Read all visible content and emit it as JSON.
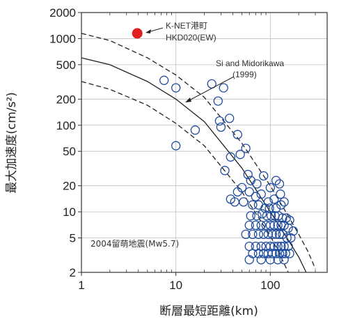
{
  "chart_data": {
    "type": "scatter",
    "title": "",
    "xlabel": "断層最短距離(km)",
    "ylabel": "最大加速度(cm/s²)",
    "x_scale": "log",
    "y_scale": "log",
    "xlim": [
      1,
      400
    ],
    "ylim": [
      2,
      2000
    ],
    "x_ticks": [
      {
        "value": 1,
        "label": "1"
      },
      {
        "value": 10,
        "label": "10"
      },
      {
        "value": 100,
        "label": "100"
      }
    ],
    "y_ticks": [
      {
        "value": 2000,
        "label": "2000"
      },
      {
        "value": 1000,
        "label": "1000"
      },
      {
        "value": 500,
        "label": "500"
      },
      {
        "value": 200,
        "label": "200"
      },
      {
        "value": 100,
        "label": "100"
      },
      {
        "value": 50,
        "label": "50"
      },
      {
        "value": 20,
        "label": "20"
      },
      {
        "value": 10,
        "label": "10"
      },
      {
        "value": 5,
        "label": "5"
      },
      {
        "value": 2,
        "label": "2"
      }
    ],
    "grid": true,
    "colors": {
      "stations": "#1e4b9e",
      "highlight": "#e02020",
      "curves": "#222222",
      "grid": "#bfbfbf"
    },
    "highlight_point": {
      "x": 3.9,
      "y": 1150
    },
    "curves": [
      {
        "style": "solid",
        "points": [
          [
            1,
            600
          ],
          [
            2,
            500
          ],
          [
            5,
            320
          ],
          [
            10,
            200
          ],
          [
            20,
            110
          ],
          [
            50,
            32
          ],
          [
            100,
            10
          ],
          [
            150,
            5
          ],
          [
            200,
            3
          ],
          [
            240,
            2
          ]
        ]
      },
      {
        "style": "dashed",
        "points": [
          [
            1,
            1150
          ],
          [
            2,
            950
          ],
          [
            5,
            600
          ],
          [
            10,
            380
          ],
          [
            20,
            210
          ],
          [
            50,
            62
          ],
          [
            100,
            20
          ],
          [
            150,
            9.5
          ],
          [
            200,
            5.5
          ],
          [
            250,
            3.5
          ],
          [
            300,
            2.2
          ]
        ]
      },
      {
        "style": "dashed",
        "points": [
          [
            1,
            320
          ],
          [
            2,
            260
          ],
          [
            5,
            170
          ],
          [
            10,
            105
          ],
          [
            20,
            58
          ],
          [
            50,
            17
          ],
          [
            100,
            5.3
          ],
          [
            130,
            3
          ],
          [
            155,
            2
          ]
        ]
      }
    ],
    "series": [
      {
        "marker": "open-circle",
        "points": [
          [
            7.5,
            330
          ],
          [
            10,
            270
          ],
          [
            32,
            270
          ],
          [
            28,
            190
          ],
          [
            24,
            300
          ],
          [
            37,
            120
          ],
          [
            29,
            112
          ],
          [
            30,
            95
          ],
          [
            16,
            88
          ],
          [
            10,
            58
          ],
          [
            45,
            78
          ],
          [
            48,
            46
          ],
          [
            55,
            54
          ],
          [
            38,
            43
          ],
          [
            33,
            30
          ],
          [
            58,
            27
          ],
          [
            62,
            23
          ],
          [
            50,
            19
          ],
          [
            45,
            17
          ],
          [
            60,
            17
          ],
          [
            72,
            21
          ],
          [
            85,
            26
          ],
          [
            100,
            19
          ],
          [
            115,
            23
          ],
          [
            125,
            21
          ],
          [
            70,
            15
          ],
          [
            80,
            16
          ],
          [
            95,
            13
          ],
          [
            110,
            14
          ],
          [
            128,
            16
          ],
          [
            38,
            14
          ],
          [
            42,
            13
          ],
          [
            52,
            13
          ],
          [
            65,
            12
          ],
          [
            75,
            12
          ],
          [
            88,
            11
          ],
          [
            98,
            11
          ],
          [
            115,
            11
          ],
          [
            130,
            12
          ],
          [
            140,
            13
          ],
          [
            62,
            9
          ],
          [
            72,
            9
          ],
          [
            82,
            9.5
          ],
          [
            92,
            9
          ],
          [
            102,
            9
          ],
          [
            112,
            9
          ],
          [
            122,
            9
          ],
          [
            135,
            8.5
          ],
          [
            148,
            8.5
          ],
          [
            160,
            8
          ],
          [
            60,
            7
          ],
          [
            70,
            7
          ],
          [
            80,
            7
          ],
          [
            90,
            7
          ],
          [
            100,
            7
          ],
          [
            110,
            7
          ],
          [
            120,
            7
          ],
          [
            130,
            7
          ],
          [
            140,
            7
          ],
          [
            155,
            6.5
          ],
          [
            175,
            6
          ],
          [
            55,
            5.5
          ],
          [
            65,
            5.5
          ],
          [
            75,
            5.5
          ],
          [
            85,
            5.5
          ],
          [
            95,
            5.5
          ],
          [
            105,
            5.5
          ],
          [
            115,
            5.5
          ],
          [
            125,
            5.5
          ],
          [
            135,
            5.5
          ],
          [
            150,
            5
          ],
          [
            165,
            5
          ],
          [
            60,
            4
          ],
          [
            70,
            4
          ],
          [
            80,
            4
          ],
          [
            90,
            4
          ],
          [
            100,
            4
          ],
          [
            110,
            4
          ],
          [
            120,
            4
          ],
          [
            130,
            4
          ],
          [
            140,
            4
          ],
          [
            155,
            4
          ],
          [
            65,
            3.3
          ],
          [
            75,
            3.3
          ],
          [
            85,
            3.3
          ],
          [
            95,
            3.3
          ],
          [
            105,
            3.3
          ],
          [
            115,
            3.3
          ],
          [
            125,
            3.3
          ],
          [
            135,
            3.3
          ],
          [
            145,
            3.3
          ],
          [
            160,
            3.3
          ],
          [
            60,
            2.8
          ],
          [
            80,
            2.8
          ],
          [
            100,
            2.8
          ],
          [
            120,
            2.8
          ],
          [
            140,
            2.8
          ]
        ]
      }
    ],
    "annotations": [
      {
        "text": "K-NET港町"
      },
      {
        "text": "HKD020(EW)"
      },
      {
        "text": "Si and Midorikawa"
      },
      {
        "text": "(1999)"
      },
      {
        "text": "2004留萌地震(Mw5.7)"
      }
    ]
  }
}
